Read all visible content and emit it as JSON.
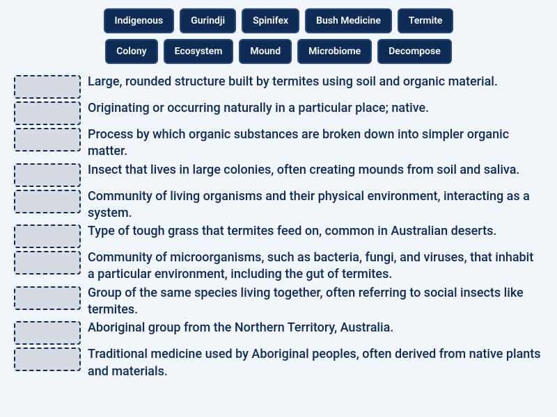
{
  "colors": {
    "page_bg": "#f2f5fa",
    "text": "#0d2b55",
    "chip_bg": "#0d2b55",
    "chip_border": "#2a4a7a",
    "chip_text": "#ffffff",
    "dropzone_bg": "#d7dce3",
    "dropzone_border": "#0d2b55"
  },
  "typography": {
    "chip_fontsize": 14,
    "def_fontsize": 18,
    "def_lineheight": 1.35,
    "family": "system-ui"
  },
  "word_bank": [
    "Indigenous",
    "Gurindji",
    "Spinifex",
    "Bush Medicine",
    "Termite",
    "Colony",
    "Ecosystem",
    "Mound",
    "Microbiome",
    "Decompose"
  ],
  "definitions": [
    "Large, rounded structure built by termites using soil and organic material.",
    "Originating or occurring naturally in a particular place; native.",
    "Process by which organic substances are broken down into simpler organic matter.",
    "Insect that lives in large colonies, often creating mounds from soil and saliva.",
    "Community of living organisms and their physical environment, interacting as a system.",
    "Type of tough grass that termites feed on, common in Australian deserts.",
    "Community of microorganisms, such as bacteria, fungi, and viruses, that inhabit a particular environment, including the gut of termites.",
    "Group of the same species living together, often referring to social insects like termites.",
    "Aboriginal group from the Northern Territory, Australia.",
    "Traditional medicine used by Aboriginal peoples, often derived from native plants and materials."
  ]
}
